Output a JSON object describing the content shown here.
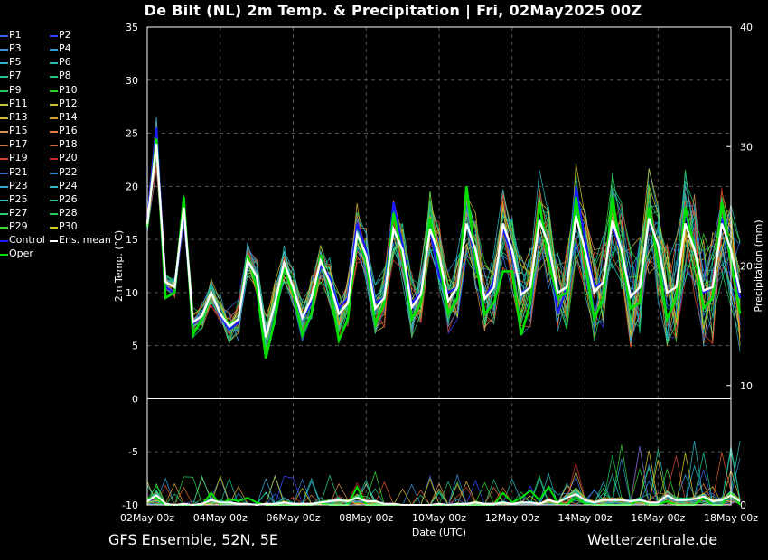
{
  "title": "De Bilt  (NL)  2m Temp. & Precipitation | Fri, 02May2025 00Z",
  "footer": {
    "left": "GFS Ensemble, 52N, 5E",
    "right": "Wetterzentrale.de"
  },
  "legend": [
    {
      "label": "P1",
      "color": "#3a66e8"
    },
    {
      "label": "P2",
      "color": "#3344ff"
    },
    {
      "label": "P3",
      "color": "#3c8ed8"
    },
    {
      "label": "P4",
      "color": "#2f9fd0"
    },
    {
      "label": "P5",
      "color": "#2bb3c9"
    },
    {
      "label": "P6",
      "color": "#22c0b0"
    },
    {
      "label": "P7",
      "color": "#20c49a"
    },
    {
      "label": "P8",
      "color": "#1fc67c"
    },
    {
      "label": "P9",
      "color": "#1fcc5a"
    },
    {
      "label": "P10",
      "color": "#2ed12f"
    },
    {
      "label": "P11",
      "color": "#c4c43a"
    },
    {
      "label": "P12",
      "color": "#d0c030"
    },
    {
      "label": "P13",
      "color": "#d8b838"
    },
    {
      "label": "P14",
      "color": "#d8a030"
    },
    {
      "label": "P15",
      "color": "#d89050"
    },
    {
      "label": "P16",
      "color": "#e08040"
    },
    {
      "label": "P17",
      "color": "#e07030"
    },
    {
      "label": "P18",
      "color": "#e05a30"
    },
    {
      "label": "P19",
      "color": "#d04a3a"
    },
    {
      "label": "P20",
      "color": "#c82a2a"
    },
    {
      "label": "P21",
      "color": "#3a6ad0"
    },
    {
      "label": "P22",
      "color": "#2c86d8"
    },
    {
      "label": "P23",
      "color": "#33a8d0"
    },
    {
      "label": "P24",
      "color": "#30b8c8"
    },
    {
      "label": "P25",
      "color": "#22c4b4"
    },
    {
      "label": "P26",
      "color": "#20c898"
    },
    {
      "label": "P27",
      "color": "#25cc76"
    },
    {
      "label": "P28",
      "color": "#26cc50"
    },
    {
      "label": "P29",
      "color": "#3ad838"
    },
    {
      "label": "P30",
      "color": "#d8c820"
    },
    {
      "label": "Control",
      "color": "#1a1aff"
    },
    {
      "label": "Ens. mean",
      "color": "#ffffff"
    },
    {
      "label": "Oper",
      "color": "#00e000"
    }
  ],
  "chart_data": {
    "type": "line",
    "xlabel": "Date (UTC)",
    "ylabel": "2m Temp. (°C)",
    "ylabel_right": "Precipitation (mm)",
    "ylim": [
      -10,
      35
    ],
    "ylim_right": [
      0,
      40
    ],
    "yticks": [
      "35",
      "30",
      "25",
      "20",
      "15",
      "10",
      "5",
      "0",
      "-5",
      "-10"
    ],
    "yticks_right": [
      "40",
      "30",
      "20",
      "10",
      "0"
    ],
    "xticks": [
      "02May 00z",
      "04May 00z",
      "06May 00z",
      "08May 00z",
      "10May 00z",
      "12May 00z",
      "14May 00z",
      "16May 00z",
      "18May 00z"
    ],
    "x_hours_step": 6,
    "x_hours_max": 384,
    "grid": true,
    "series": [
      {
        "name": "Ens. mean",
        "color": "#ffffff",
        "values": [
          16.5,
          24.0,
          11.0,
          10.5,
          18.0,
          7.2,
          7.8,
          10.0,
          8.0,
          6.8,
          7.5,
          13.0,
          11.5,
          5.8,
          9.0,
          12.8,
          10.5,
          7.6,
          9.5,
          13.0,
          11.0,
          8.0,
          9.0,
          15.5,
          13.5,
          8.5,
          9.5,
          16.0,
          14.0,
          8.6,
          9.8,
          16.0,
          13.5,
          9.2,
          10.5,
          16.5,
          14.0,
          9.4,
          10.5,
          16.5,
          14.0,
          9.8,
          10.5,
          16.8,
          14.5,
          10.0,
          10.5,
          17.2,
          14.0,
          10.0,
          11.0,
          16.8,
          14.0,
          9.6,
          10.5,
          17.0,
          14.5,
          10.0,
          10.5,
          16.5,
          14.0,
          10.2,
          10.5,
          16.5,
          14.0,
          10.0
        ]
      },
      {
        "name": "Oper",
        "color": "#00e000",
        "values": [
          16.2,
          24.5,
          9.5,
          10.0,
          19.0,
          6.0,
          7.5,
          10.0,
          8.0,
          7.0,
          7.5,
          13.5,
          10.5,
          3.8,
          7.5,
          12.5,
          10.0,
          6.0,
          8.0,
          13.5,
          10.5,
          5.5,
          7.5,
          15.5,
          13.0,
          7.0,
          9.0,
          17.5,
          13.5,
          7.5,
          9.0,
          17.0,
          13.0,
          8.0,
          9.5,
          20.0,
          13.0,
          8.0,
          9.0,
          12.0,
          12.0,
          6.0,
          9.0,
          18.5,
          13.0,
          9.5,
          10.0,
          19.0,
          13.0,
          7.5,
          9.5,
          19.0,
          13.5,
          8.5,
          9.0,
          18.0,
          13.0,
          7.5,
          9.5,
          18.0,
          14.0,
          8.5,
          9.5,
          18.5,
          13.0,
          8.0
        ]
      },
      {
        "name": "Control",
        "color": "#1a1aff",
        "values": [
          17.0,
          25.5,
          10.5,
          10.0,
          17.5,
          7.0,
          7.8,
          10.0,
          7.8,
          6.5,
          7.2,
          13.0,
          11.0,
          5.8,
          9.0,
          12.5,
          10.0,
          7.5,
          9.0,
          12.5,
          11.5,
          8.5,
          9.5,
          16.5,
          14.0,
          9.0,
          9.5,
          18.5,
          14.5,
          9.0,
          10.0,
          16.0,
          11.5,
          10.0,
          10.5,
          16.5,
          13.5,
          9.5,
          11.0,
          16.0,
          13.5,
          10.0,
          10.5,
          17.0,
          14.5,
          8.0,
          10.5,
          20.0,
          15.0,
          10.5,
          11.0,
          16.5,
          13.5,
          9.5,
          10.5,
          17.0,
          14.5,
          10.0,
          10.5,
          17.5,
          14.0,
          10.0,
          10.5,
          17.0,
          13.5,
          9.5
        ]
      },
      {
        "name": "Ens. mean precipitation",
        "color": "#ffffff",
        "axis": "right",
        "values": [
          0.3,
          0.8,
          0.1,
          0.0,
          0.1,
          0.0,
          0.1,
          0.4,
          0.2,
          0.2,
          0.1,
          0.1,
          0.0,
          0.1,
          0.1,
          0.2,
          0.1,
          0.1,
          0.1,
          0.2,
          0.3,
          0.4,
          0.3,
          0.6,
          0.3,
          0.3,
          0.1,
          0.1,
          0.0,
          0.0,
          0.0,
          0.0,
          0.1,
          0.0,
          0.1,
          0.1,
          0.2,
          0.1,
          0.1,
          0.2,
          0.1,
          0.2,
          0.2,
          0.1,
          0.4,
          0.2,
          0.6,
          0.9,
          0.4,
          0.2,
          0.4,
          0.4,
          0.4,
          0.3,
          0.4,
          0.2,
          0.2,
          0.8,
          0.4,
          0.4,
          0.5,
          0.7,
          0.3,
          0.4,
          0.8,
          0.3
        ]
      },
      {
        "name": "Oper precipitation",
        "color": "#00e000",
        "axis": "right",
        "values": [
          0.5,
          0.6,
          0.0,
          0.0,
          0.0,
          0.0,
          0.0,
          1.0,
          0.0,
          0.5,
          0.3,
          0.6,
          0.2,
          0.0,
          0.0,
          0.0,
          0.0,
          0.0,
          0.0,
          0.2,
          0.0,
          0.0,
          0.0,
          1.5,
          0.0,
          0.0,
          0.0,
          0.0,
          0.0,
          0.0,
          0.0,
          0.0,
          0.0,
          0.0,
          0.0,
          0.0,
          0.0,
          0.0,
          0.0,
          1.0,
          0.2,
          0.6,
          1.2,
          0.4,
          1.5,
          0.2,
          0.0,
          0.6,
          0.1,
          0.0,
          0.0,
          0.0,
          0.0,
          0.0,
          0.5,
          0.0,
          0.0,
          0.3,
          0.0,
          0.0,
          0.0,
          0.6,
          0.0,
          0.0,
          1.0,
          0.0
        ]
      }
    ]
  }
}
